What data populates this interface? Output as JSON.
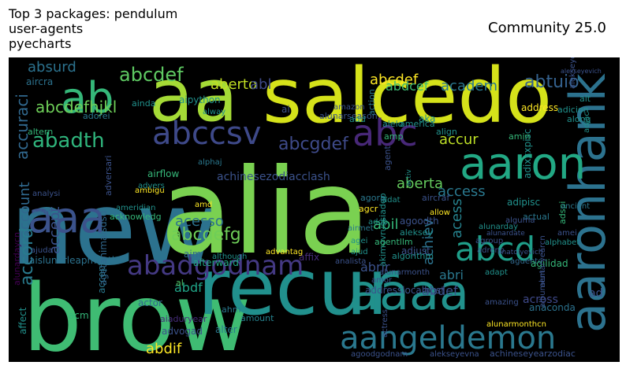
{
  "header": {
    "left_title": "Top 3 packages: pendulum\nuser-agents\npyecharts",
    "right_title": "Community 25.0"
  },
  "cloud": {
    "words": [
      {
        "text": "brow",
        "color": "#3fbc73"
      },
      {
        "text": "new",
        "color": "#2c728e"
      },
      {
        "text": "alia",
        "color": "#7ad151"
      },
      {
        "text": "recur",
        "color": "#21908d"
      },
      {
        "text": "salcedo",
        "color": "#d5e21a"
      },
      {
        "text": "aa",
        "color": "#a5db36"
      },
      {
        "text": "aaa",
        "color": "#3b528b"
      },
      {
        "text": "aaaa",
        "color": "#21918c"
      },
      {
        "text": "aangeldemon",
        "color": "#2a788e"
      },
      {
        "text": "aaronhank",
        "color": "#2c728e"
      },
      {
        "text": "aaron",
        "color": "#22a884"
      },
      {
        "text": "abc",
        "color": "#482878"
      },
      {
        "text": "abccsv",
        "color": "#3e4989"
      },
      {
        "text": "abcd",
        "color": "#1f9e89"
      },
      {
        "text": "ab",
        "color": "#35b779"
      },
      {
        "text": "abadgodnam",
        "color": "#443983"
      },
      {
        "text": "abadth",
        "color": "#2fb47c"
      },
      {
        "text": "abcdef",
        "color": "#5ec962"
      },
      {
        "text": "abcdefg",
        "color": "#6ece58"
      },
      {
        "text": "abcdefhjkl",
        "color": "#6ece58"
      },
      {
        "text": "abcgdef",
        "color": "#3e4a89"
      },
      {
        "text": "abcdef",
        "color": "#fde725"
      },
      {
        "text": "aberto",
        "color": "#c2df23"
      },
      {
        "text": "abl",
        "color": "#3e4989"
      },
      {
        "text": "abdcef",
        "color": "#3fbc73"
      },
      {
        "text": "academ",
        "color": "#2a788e"
      },
      {
        "text": "abtuio",
        "color": "#34618d"
      },
      {
        "text": "absurd",
        "color": "#2c728e"
      },
      {
        "text": "aircra",
        "color": "#2c728e"
      },
      {
        "text": "accur",
        "color": "#bddf26"
      },
      {
        "text": "account",
        "color": "#30698e"
      },
      {
        "text": "accuraci",
        "color": "#31688e"
      },
      {
        "text": "accord",
        "color": "#297b8e"
      },
      {
        "text": "accept",
        "color": "#3b528b"
      },
      {
        "text": "acceptd",
        "color": "#2a788e"
      },
      {
        "text": "abdf",
        "color": "#20a386"
      },
      {
        "text": "abdif",
        "color": "#fde725"
      },
      {
        "text": "abrir",
        "color": "#3b528b"
      },
      {
        "text": "abri",
        "color": "#2a788e"
      },
      {
        "text": "abil",
        "color": "#35b779"
      },
      {
        "text": "aberta",
        "color": "#65cb5e"
      },
      {
        "text": "access",
        "color": "#2a788e"
      },
      {
        "text": "acess",
        "color": "#26828e"
      },
      {
        "text": "acesso",
        "color": "#2c728e"
      },
      {
        "text": "achiev",
        "color": "#2c728e"
      },
      {
        "text": "abdef",
        "color": "#3b528b"
      },
      {
        "text": "across",
        "color": "#3e4989"
      },
      {
        "text": "ad",
        "color": "#3b528b"
      },
      {
        "text": "affix",
        "color": "#472c7a"
      },
      {
        "text": "afterward",
        "color": "#22a884"
      },
      {
        "text": "ahm",
        "color": "#2a788e"
      },
      {
        "text": "aim",
        "color": "#31688e"
      },
      {
        "text": "alter",
        "color": "#2a788e"
      },
      {
        "text": "amount",
        "color": "#26828e"
      },
      {
        "text": "advogad",
        "color": "#3b528b"
      },
      {
        "text": "aiaduryear",
        "color": "#472c7a"
      },
      {
        "text": "acm",
        "color": "#35b779"
      },
      {
        "text": "actor",
        "color": "#31688e"
      },
      {
        "text": "al",
        "color": "#52c569"
      },
      {
        "text": "affect",
        "color": "#21918c"
      },
      {
        "text": "alunardaycn",
        "color": "#440154"
      },
      {
        "text": "aislunarleapmonth",
        "color": "#2c728e"
      },
      {
        "text": "ajuda",
        "color": "#3b528b"
      },
      {
        "text": "agetanimalsdsd",
        "color": "#31688e"
      },
      {
        "text": "acknowledg",
        "color": "#35b779"
      },
      {
        "text": "ameridian",
        "color": "#21918c"
      },
      {
        "text": "amd",
        "color": "#fde725"
      },
      {
        "text": "advantag",
        "color": "#fde725"
      },
      {
        "text": "although",
        "color": "#21918c"
      },
      {
        "text": "analista",
        "color": "#3b528b"
      },
      {
        "text": "adjust",
        "color": "#3b528b"
      },
      {
        "text": "adapt",
        "color": "#21918c"
      },
      {
        "text": "aguento",
        "color": "#31688e"
      },
      {
        "text": "amazing",
        "color": "#3b528b"
      },
      {
        "text": "anaconda",
        "color": "#2c728e"
      },
      {
        "text": "akimovrussiadep",
        "color": "#21918c"
      },
      {
        "text": "amor",
        "color": "#3b528b"
      },
      {
        "text": "addresslocalhost",
        "color": "#3b528b"
      },
      {
        "text": "actress",
        "color": "#3b528b"
      },
      {
        "text": "agoodgodnam",
        "color": "#3b528b"
      },
      {
        "text": "alekseyevna",
        "color": "#3b528b"
      },
      {
        "text": "achineseyearzodiac",
        "color": "#3b528b"
      },
      {
        "text": "alunarmonthcn",
        "color": "#fde725"
      },
      {
        "text": "agent",
        "color": "#3b528b"
      },
      {
        "text": "agoodth",
        "color": "#3b528b"
      },
      {
        "text": "agora",
        "color": "#2a788e"
      },
      {
        "text": "aircraf",
        "color": "#3b528b"
      },
      {
        "text": "activ",
        "color": "#21918c"
      },
      {
        "text": "agcr",
        "color": "#fde725"
      },
      {
        "text": "agentllm",
        "color": "#35b779"
      },
      {
        "text": "algorithm",
        "color": "#21918c"
      },
      {
        "text": "allow",
        "color": "#fde725"
      },
      {
        "text": "adob",
        "color": "#21918c"
      },
      {
        "text": "adat",
        "color": "#21918c"
      },
      {
        "text": "agei",
        "color": "#21918c"
      },
      {
        "text": "ajud",
        "color": "#21918c"
      },
      {
        "text": "alunarmonth",
        "color": "#3b528b"
      },
      {
        "text": "airmet",
        "color": "#2a788e"
      },
      {
        "text": "alekseyevich",
        "color": "#3b528b"
      },
      {
        "text": "aleksey",
        "color": "#21918c"
      },
      {
        "text": "actual",
        "color": "#2a788e"
      },
      {
        "text": "alunardate",
        "color": "#3b528b"
      },
      {
        "text": "adipisc",
        "color": "#21918c"
      },
      {
        "text": "adixxxpisc",
        "color": "#21918c"
      },
      {
        "text": "anatolyevich",
        "color": "#3b528b"
      },
      {
        "text": "agilidad",
        "color": "#35b779"
      },
      {
        "text": "alphabet",
        "color": "#21918c"
      },
      {
        "text": "amei",
        "color": "#3b528b"
      },
      {
        "text": "adspi",
        "color": "#35b779"
      },
      {
        "text": "adjac",
        "color": "#21918c"
      },
      {
        "text": "ancient",
        "color": "#2a788e"
      },
      {
        "text": "albument",
        "color": "#3b528b"
      },
      {
        "text": "agilidad",
        "color": "#35b779"
      },
      {
        "text": "alunaryearcn",
        "color": "#3b528b"
      },
      {
        "text": "agroup",
        "color": "#3b528b"
      },
      {
        "text": "adreno",
        "color": "#3b528b"
      },
      {
        "text": "alguma",
        "color": "#3b528b"
      },
      {
        "text": "alunarday",
        "color": "#21918c"
      },
      {
        "text": "achinesezodiacclash",
        "color": "#3b528b"
      },
      {
        "text": "alphaj",
        "color": "#2a788e"
      },
      {
        "text": "ambigu",
        "color": "#fde725"
      },
      {
        "text": "airflow",
        "color": "#35b779"
      },
      {
        "text": "advers",
        "color": "#21918c"
      },
      {
        "text": "adversari",
        "color": "#3b528b"
      },
      {
        "text": "analysi",
        "color": "#3b528b"
      },
      {
        "text": "addit",
        "color": "#31688e"
      },
      {
        "text": "altern",
        "color": "#35b779"
      },
      {
        "text": "adorei",
        "color": "#2a788e"
      },
      {
        "text": "ainda",
        "color": "#21918c"
      },
      {
        "text": "aipython",
        "color": "#21918c"
      },
      {
        "text": "alway",
        "color": "#21918c"
      },
      {
        "text": "ai",
        "color": "#3b528b"
      },
      {
        "text": "alunarseason",
        "color": "#3b528b"
      },
      {
        "text": "amazon",
        "color": "#3b528b"
      },
      {
        "text": "add",
        "color": "#21918c"
      },
      {
        "text": "action",
        "color": "#2a788e"
      },
      {
        "text": "alelo",
        "color": "#21918c"
      },
      {
        "text": "america",
        "color": "#21918c"
      },
      {
        "text": "aka",
        "color": "#21918c"
      },
      {
        "text": "amp",
        "color": "#35b779"
      },
      {
        "text": "align",
        "color": "#21918c"
      },
      {
        "text": "amin",
        "color": "#35b779"
      },
      {
        "text": "address",
        "color": "#fde725"
      },
      {
        "text": "adicion",
        "color": "#21918c"
      },
      {
        "text": "along",
        "color": "#21918c"
      },
      {
        "text": "alt",
        "color": "#21918c"
      },
      {
        "text": "alekseyevich",
        "color": "#3b528b"
      }
    ]
  }
}
